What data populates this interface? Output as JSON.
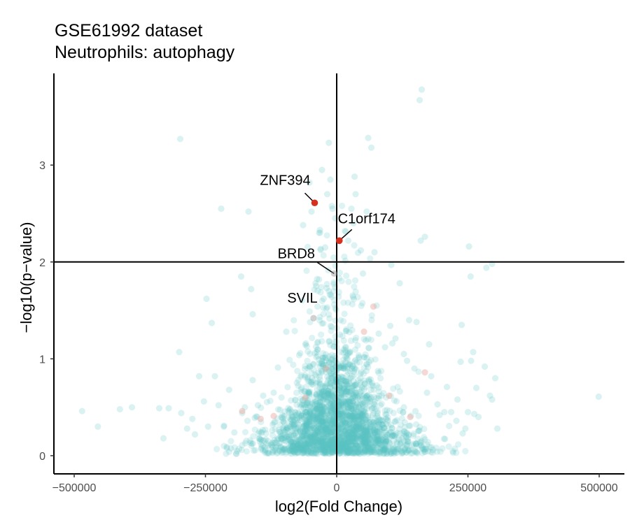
{
  "chart_data": {
    "type": "scatter",
    "title": "GSE61992 dataset",
    "subtitle": "Neutrophils: autophagy",
    "xlabel": "log2(Fold Change)",
    "ylabel": "−log10(p−value)",
    "xlim": [
      -520000,
      545000
    ],
    "ylim": [
      -0.18,
      3.95
    ],
    "x_ticks": [
      {
        "value": -500000,
        "label": "−500000"
      },
      {
        "value": -250000,
        "label": "−250000"
      },
      {
        "value": 0,
        "label": "0"
      },
      {
        "value": 250000,
        "label": "250000"
      },
      {
        "value": 500000,
        "label": "500000"
      }
    ],
    "y_ticks": [
      {
        "value": 0,
        "label": "0"
      },
      {
        "value": 1,
        "label": "1"
      },
      {
        "value": 2,
        "label": "2"
      },
      {
        "value": 3,
        "label": "3"
      }
    ],
    "reference_lines": {
      "x": 0,
      "y": 2
    },
    "grid": false,
    "legend": "none",
    "colors": {
      "points": "#5cc3c3",
      "highlight": "#d7301f"
    },
    "highlighted_genes": [
      {
        "name": "ZNF394",
        "x": -42000,
        "y": 2.61
      },
      {
        "name": "C1orf174",
        "x": 5000,
        "y": 2.22
      },
      {
        "name": "BRD8",
        "x": -5000,
        "y": 1.88
      },
      {
        "name": "SVIL",
        "x": -44000,
        "y": 1.42
      }
    ],
    "sparse_points": [
      [
        -485000,
        0.46
      ],
      [
        -455000,
        0.3
      ],
      [
        -413000,
        0.48
      ],
      [
        -390000,
        0.5
      ],
      [
        -338000,
        0.49
      ],
      [
        -320000,
        0.49
      ],
      [
        -330000,
        0.18
      ],
      [
        -300000,
        1.07
      ],
      [
        -296000,
        0.44
      ],
      [
        -298000,
        3.27
      ],
      [
        -275000,
        0.38
      ],
      [
        -285000,
        0.28
      ],
      [
        -270000,
        0.22
      ],
      [
        -262000,
        0.82
      ],
      [
        -253000,
        0.56
      ],
      [
        -248000,
        1.62
      ],
      [
        -245000,
        0.3
      ],
      [
        -238000,
        1.37
      ],
      [
        -225000,
        0.52
      ],
      [
        -232000,
        0.82
      ],
      [
        -220000,
        2.55
      ],
      [
        -215000,
        0.3
      ],
      [
        -205000,
        0.68
      ],
      [
        -180000,
        0.44
      ],
      [
        -175000,
        0.5
      ],
      [
        -195000,
        0.24
      ],
      [
        -182000,
        1.85
      ],
      [
        -168000,
        2.52
      ],
      [
        -163000,
        1.72
      ],
      [
        -160000,
        1.46
      ],
      [
        -160000,
        0.78
      ],
      [
        -170000,
        0.36
      ],
      [
        -156000,
        0.39
      ],
      [
        -140000,
        0.62
      ],
      [
        -150000,
        0.52
      ],
      [
        -112000,
        0.91
      ],
      [
        -120000,
        0.65
      ],
      [
        -96000,
        1.28
      ],
      [
        -64000,
        2.38
      ],
      [
        -52000,
        2.82
      ],
      [
        -48000,
        2.52
      ],
      [
        -28000,
        2.95
      ],
      [
        -32000,
        2.33
      ],
      [
        -22000,
        2.15
      ],
      [
        -18000,
        2.7
      ],
      [
        -15000,
        3.23
      ],
      [
        -12000,
        2.85
      ],
      [
        -8000,
        2.55
      ],
      [
        -3000,
        2.45
      ],
      [
        -25000,
        1.62
      ],
      [
        -19000,
        1.73
      ],
      [
        22000,
        2.22
      ],
      [
        28000,
        2.55
      ],
      [
        32000,
        2.4
      ],
      [
        34000,
        2.88
      ],
      [
        36000,
        2.7
      ],
      [
        46000,
        2.12
      ],
      [
        50000,
        1.88
      ],
      [
        57000,
        2.52
      ],
      [
        60000,
        3.28
      ],
      [
        66000,
        3.18
      ],
      [
        72000,
        2.1
      ],
      [
        76000,
        1.55
      ],
      [
        80000,
        1.26
      ],
      [
        92000,
        1.12
      ],
      [
        102000,
        1.34
      ],
      [
        104000,
        1.97
      ],
      [
        106000,
        1.16
      ],
      [
        112000,
        1.21
      ],
      [
        120000,
        1.78
      ],
      [
        128000,
        1.05
      ],
      [
        134000,
        0.98
      ],
      [
        138000,
        1.4
      ],
      [
        152000,
        1.38
      ],
      [
        148000,
        0.9
      ],
      [
        158000,
        3.67
      ],
      [
        162000,
        3.78
      ],
      [
        160000,
        2.22
      ],
      [
        168000,
        2.26
      ],
      [
        172000,
        0.65
      ],
      [
        180000,
        0.82
      ],
      [
        176000,
        1.15
      ],
      [
        192000,
        0.53
      ],
      [
        196000,
        0.42
      ],
      [
        205000,
        0.45
      ],
      [
        210000,
        0.71
      ],
      [
        218000,
        0.45
      ],
      [
        230000,
        0.58
      ],
      [
        236000,
        0.97
      ],
      [
        238000,
        1.35
      ],
      [
        245000,
        0.28
      ],
      [
        250000,
        0.45
      ],
      [
        252000,
        2.16
      ],
      [
        255000,
        1.85
      ],
      [
        256000,
        0.98
      ],
      [
        260000,
        1.07
      ],
      [
        262000,
        0.43
      ],
      [
        266000,
        0.7
      ],
      [
        270000,
        0.4
      ],
      [
        282000,
        0.92
      ],
      [
        285000,
        1.94
      ],
      [
        292000,
        0.62
      ],
      [
        296000,
        1.98
      ],
      [
        302000,
        0.8
      ],
      [
        296000,
        0.58
      ],
      [
        306000,
        0.28
      ],
      [
        240000,
        0.23
      ],
      [
        228000,
        0.36
      ],
      [
        499000,
        0.61
      ],
      [
        -118000,
        0.35
      ],
      [
        -102000,
        0.18
      ],
      [
        -92000,
        0.46
      ],
      [
        -84000,
        0.28
      ],
      [
        -60000,
        0.12
      ],
      [
        94000,
        0.38
      ],
      [
        112000,
        0.22
      ],
      [
        128000,
        0.5
      ],
      [
        140000,
        0.31
      ],
      [
        150000,
        0.46
      ]
    ],
    "faint_highlight_points": [
      [
        -180000,
        0.46
      ],
      [
        -145000,
        0.38
      ],
      [
        -120000,
        0.41
      ],
      [
        -60000,
        0.6
      ],
      [
        70000,
        1.54
      ],
      [
        100000,
        0.62
      ],
      [
        140000,
        0.4
      ],
      [
        168000,
        0.86
      ],
      [
        52000,
        1.28
      ],
      [
        -20000,
        0.9
      ]
    ]
  }
}
